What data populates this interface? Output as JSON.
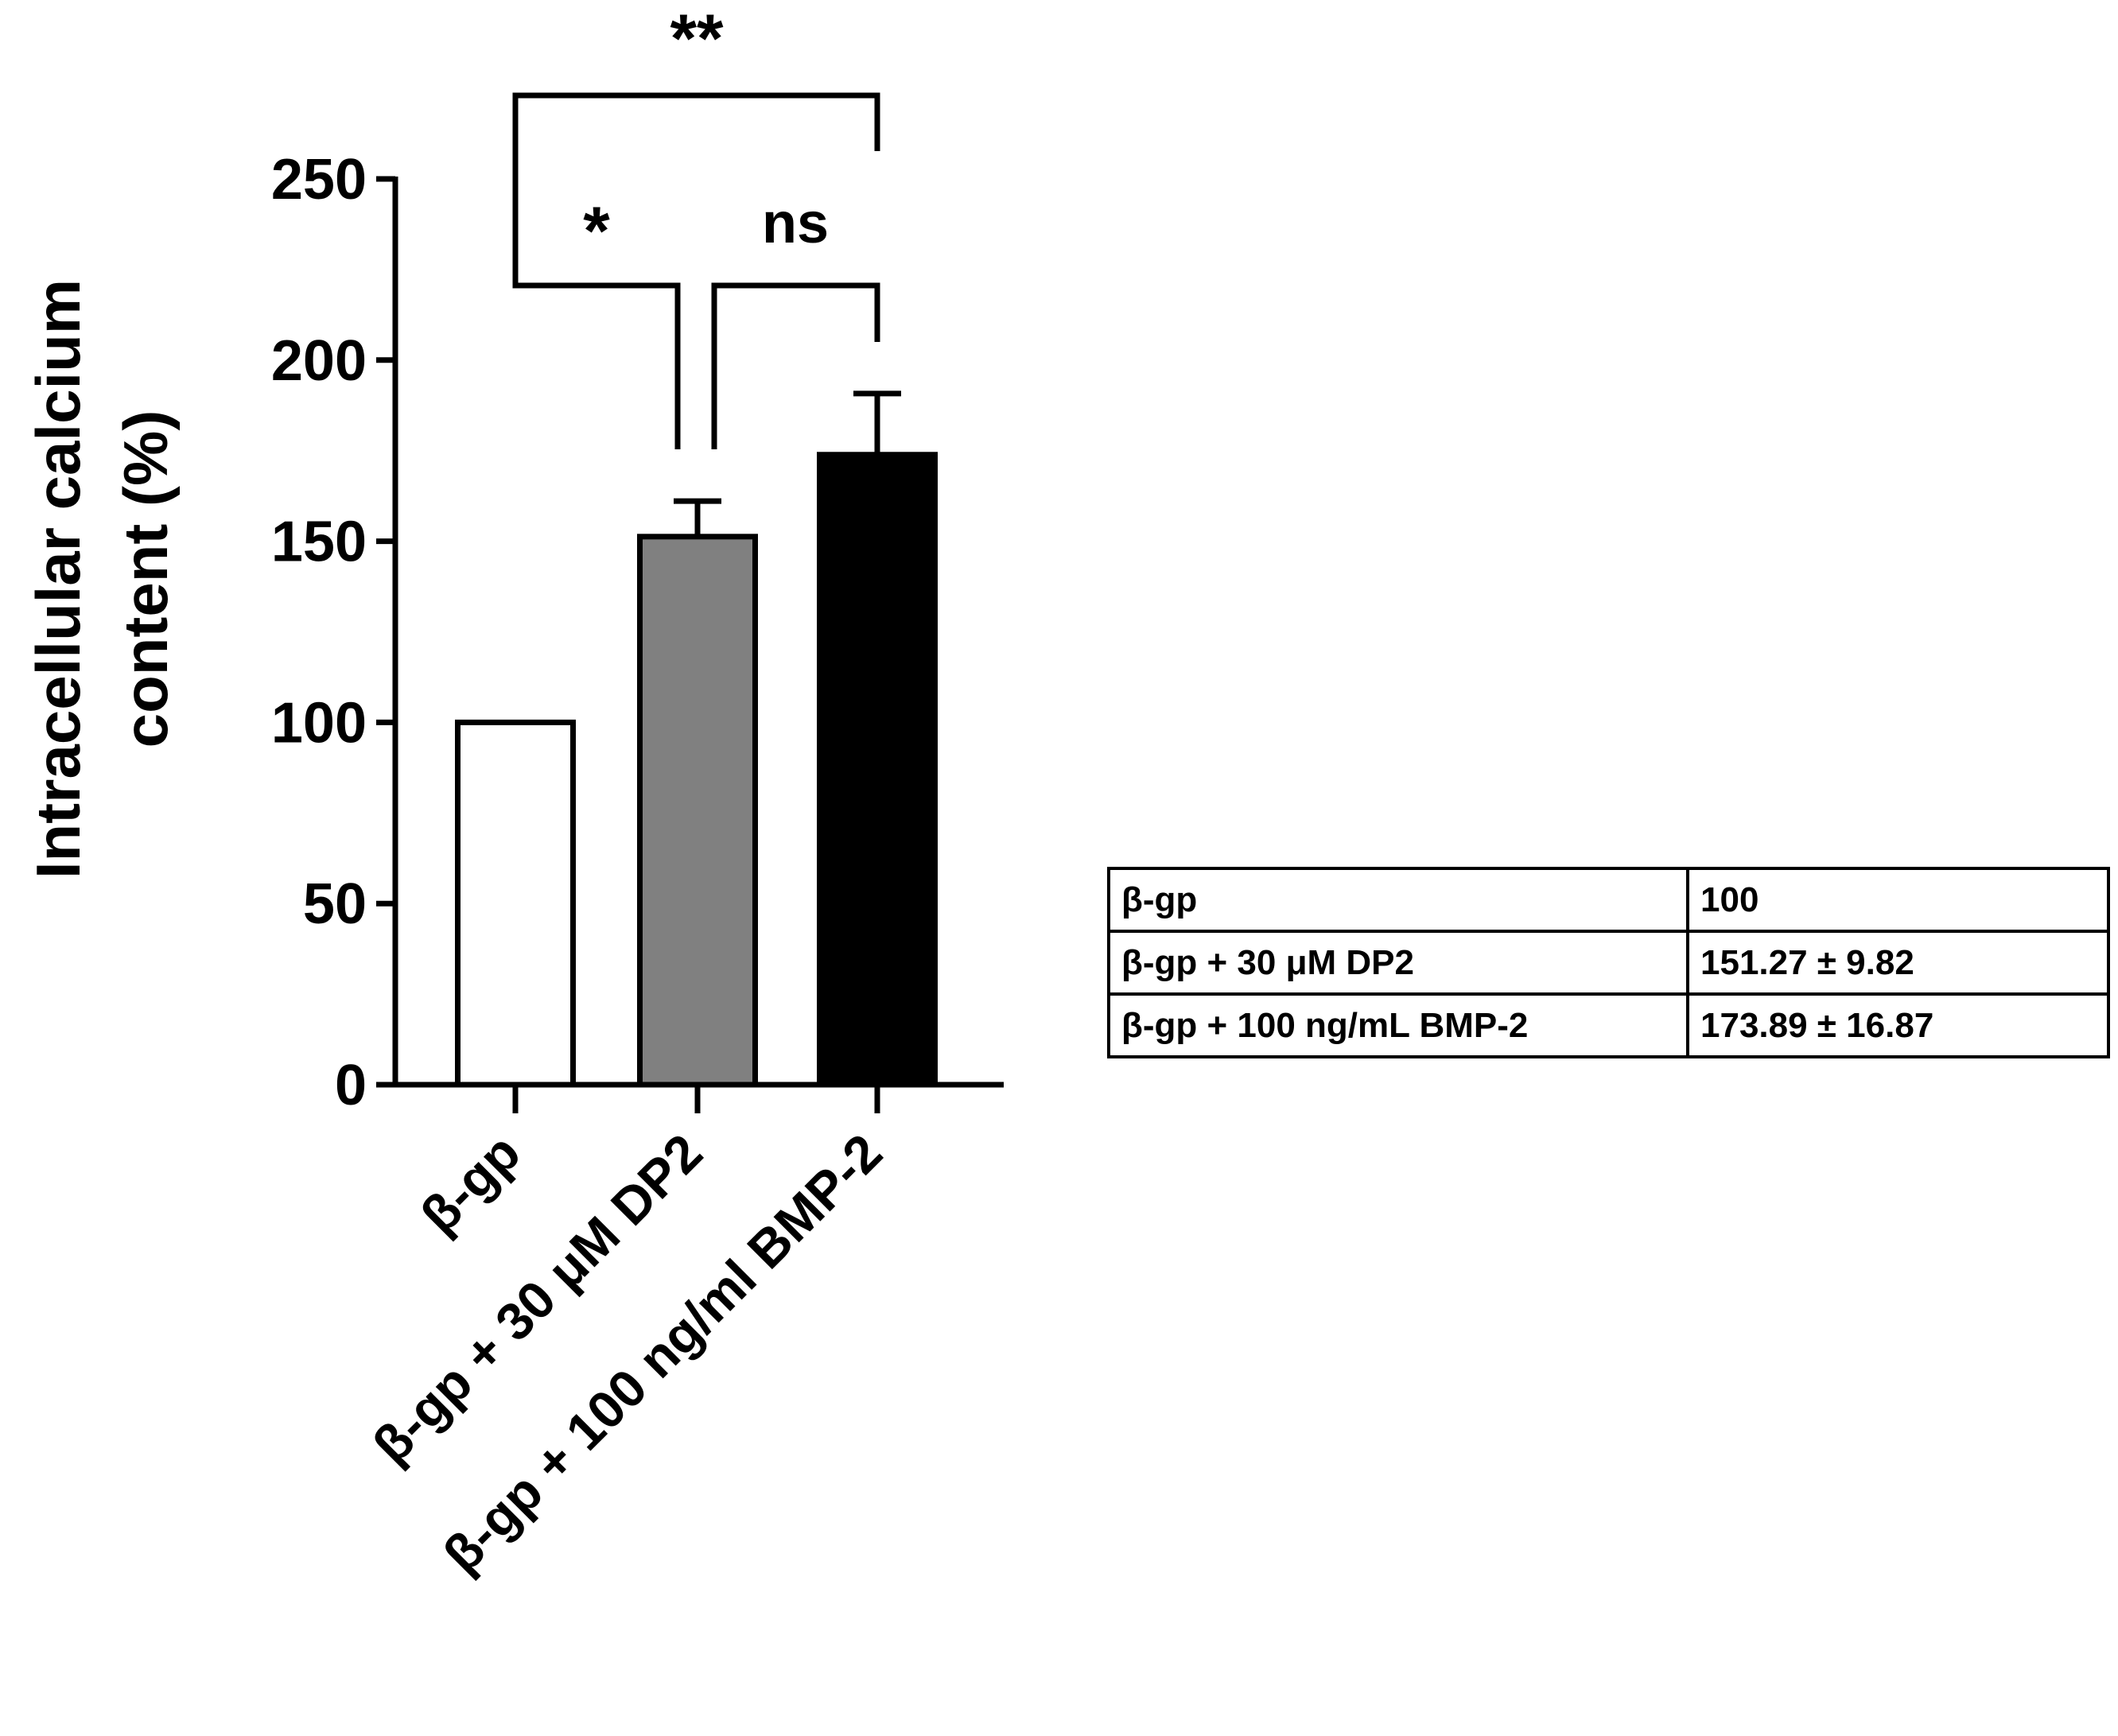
{
  "chart_data": {
    "type": "bar",
    "ylabel": "Intracellular calcium content (%)",
    "ylabel_lines": [
      "Intracellular calcium",
      "content (%)"
    ],
    "ylim": [
      0,
      250
    ],
    "yticks": [
      0,
      50,
      100,
      150,
      200,
      250
    ],
    "categories": [
      "β-gp",
      "β-gp + 30 μM DP2",
      "β-gp + 100 ng/ml BMP-2"
    ],
    "values": [
      100,
      151.27,
      173.89
    ],
    "errors": [
      0,
      9.82,
      16.87
    ],
    "bar_colors": [
      "#ffffff",
      "#808080",
      "#000000"
    ],
    "comparisons": [
      {
        "from": 0,
        "to": 2,
        "label": "**"
      },
      {
        "from": 0,
        "to": 1,
        "label": "*"
      },
      {
        "from": 1,
        "to": 2,
        "label": "ns"
      }
    ],
    "grid": false,
    "legend": "none"
  },
  "table": {
    "rows": [
      [
        "β-gp",
        "100"
      ],
      [
        "β-gp + 30 μM DP2",
        "151.27 ± 9.82"
      ],
      [
        "β-gp + 100 ng/mL BMP-2",
        "173.89 ± 16.87"
      ]
    ]
  }
}
